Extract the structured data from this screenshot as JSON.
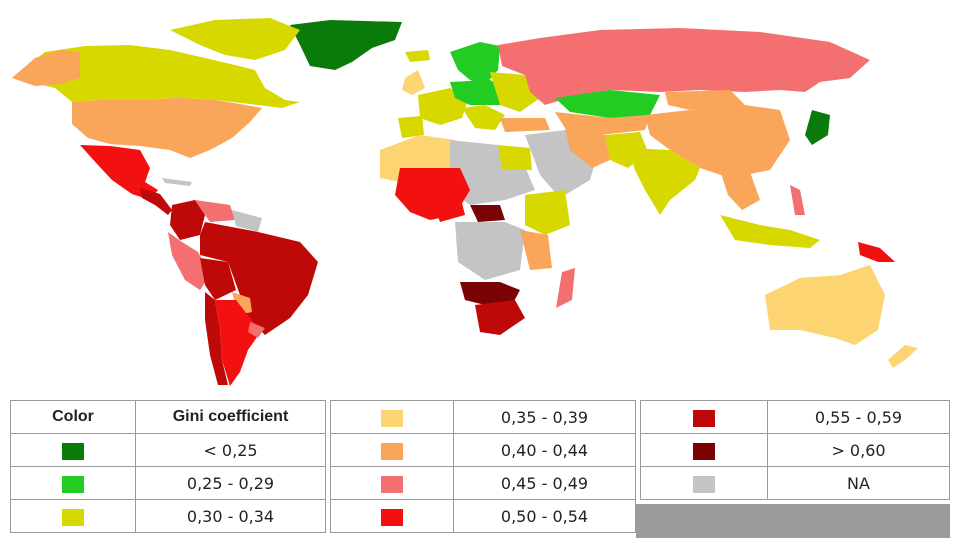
{
  "legend": {
    "header_color": "Color",
    "header_gini": "Gini coefficient",
    "items": [
      {
        "label": "< 0,25",
        "color": "#0a7a0a"
      },
      {
        "label": "0,25 - 0,29",
        "color": "#22cc22"
      },
      {
        "label": "0,30 - 0,34",
        "color": "#d6d800"
      },
      {
        "label": "0,35 - 0,39",
        "color": "#fcd472"
      },
      {
        "label": "0,40 - 0,44",
        "color": "#f9a55a"
      },
      {
        "label": "0,45 - 0,49",
        "color": "#f47070"
      },
      {
        "label": "0,50 - 0,54",
        "color": "#f21010"
      },
      {
        "label": "0,55 - 0,59",
        "color": "#bf0808"
      },
      {
        "label": "> 0,60",
        "color": "#7a0404"
      },
      {
        "label": "NA",
        "color": "#c4c4c4"
      }
    ]
  },
  "map": {
    "regions": [
      {
        "name": "greenland",
        "class": "< 0,25"
      },
      {
        "name": "canada",
        "class": "0,30 - 0,34"
      },
      {
        "name": "usa",
        "class": "0,40 - 0,44"
      },
      {
        "name": "mexico",
        "class": "0,50 - 0,54"
      },
      {
        "name": "brazil",
        "class": "0,55 - 0,59"
      },
      {
        "name": "argentina",
        "class": "0,50 - 0,54"
      },
      {
        "name": "russia",
        "class": "0,45 - 0,49"
      },
      {
        "name": "china",
        "class": "0,40 - 0,44"
      },
      {
        "name": "india",
        "class": "0,30 - 0,34"
      },
      {
        "name": "japan",
        "class": "< 0,25"
      },
      {
        "name": "australia",
        "class": "0,35 - 0,39"
      },
      {
        "name": "southern-africa",
        "class": "> 0,60"
      },
      {
        "name": "sahara",
        "class": "NA"
      }
    ]
  }
}
